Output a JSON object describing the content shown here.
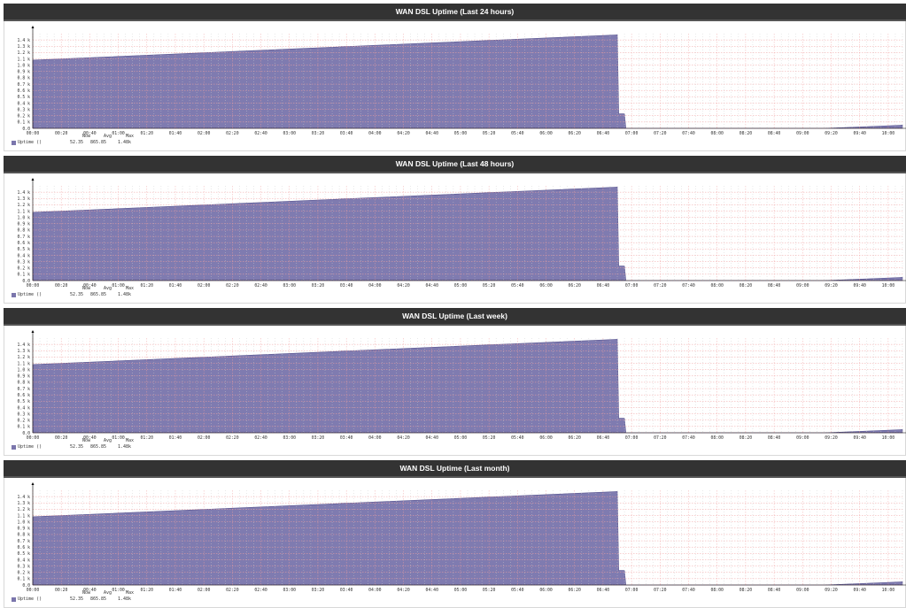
{
  "panels": [
    {
      "title": "WAN DSL Uptime (Last 24 hours)"
    },
    {
      "title": "WAN DSL Uptime (Last 48 hours)"
    },
    {
      "title": "WAN DSL Uptime (Last week)"
    },
    {
      "title": "WAN DSL Uptime (Last month)"
    }
  ],
  "legend": {
    "series_label": "Uptime ()",
    "headers": [
      "Now",
      "Avg",
      "Max"
    ],
    "values": [
      "52.35",
      "865.85",
      "1.48k"
    ],
    "swatch_color": "#7b76ac"
  },
  "colors": {
    "fill": "#7f7bb0",
    "fill_edge": "#5a5690",
    "grid_major": "#f0a0a0",
    "grid_minor": "#cccccc",
    "header_bg": "#333333"
  },
  "chart_data": [
    {
      "type": "area",
      "title": "WAN DSL Uptime (Last 24 hours)",
      "xlabel": "",
      "ylabel": "",
      "ylim": [
        0,
        1.5
      ],
      "y_unit": "k",
      "y_ticks": [
        "0.0",
        "0.1 k",
        "0.2 k",
        "0.3 k",
        "0.4 k",
        "0.5 k",
        "0.6 k",
        "0.7 k",
        "0.8 k",
        "0.9 k",
        "1.0 k",
        "1.1 k",
        "1.2 k",
        "1.3 k",
        "1.4 k"
      ],
      "x_ticks": [
        "00:00",
        "00:20",
        "00:40",
        "01:00",
        "01:20",
        "01:40",
        "02:00",
        "02:20",
        "02:40",
        "03:00",
        "03:20",
        "03:40",
        "04:00",
        "04:20",
        "04:40",
        "05:00",
        "05:20",
        "05:40",
        "06:00",
        "06:20",
        "06:40",
        "07:00",
        "07:20",
        "07:40",
        "08:00",
        "08:20",
        "08:40",
        "09:00",
        "09:20",
        "09:40",
        "10:00"
      ],
      "grid": true,
      "series": [
        {
          "name": "Uptime ()",
          "x": [
            "00:00",
            "06:50",
            "06:51",
            "06:55",
            "06:56",
            "09:15",
            "10:10"
          ],
          "values": [
            1.08,
            1.48,
            0.23,
            0.23,
            0.0,
            0.0,
            0.05
          ]
        }
      ],
      "legend_stats": {
        "now": 52.35,
        "avg": 865.85,
        "max": "1.48k"
      }
    },
    {
      "type": "area",
      "title": "WAN DSL Uptime (Last 48 hours)",
      "ylim": [
        0,
        1.5
      ],
      "y_ticks": [
        "0.0",
        "0.1 k",
        "0.2 k",
        "0.3 k",
        "0.4 k",
        "0.5 k",
        "0.6 k",
        "0.7 k",
        "0.8 k",
        "0.9 k",
        "1.0 k",
        "1.1 k",
        "1.2 k",
        "1.3 k",
        "1.4 k"
      ],
      "x_ticks": [
        "00:00",
        "00:20",
        "00:40",
        "01:00",
        "01:20",
        "01:40",
        "02:00",
        "02:20",
        "02:40",
        "03:00",
        "03:20",
        "03:40",
        "04:00",
        "04:20",
        "04:40",
        "05:00",
        "05:20",
        "05:40",
        "06:00",
        "06:20",
        "06:40",
        "07:00",
        "07:20",
        "07:40",
        "08:00",
        "08:20",
        "08:40",
        "09:00",
        "09:20",
        "09:40",
        "10:00"
      ],
      "grid": true,
      "series": [
        {
          "name": "Uptime ()",
          "x": [
            "00:00",
            "06:50",
            "06:51",
            "06:55",
            "06:56",
            "09:15",
            "10:10"
          ],
          "values": [
            1.08,
            1.48,
            0.23,
            0.23,
            0.0,
            0.0,
            0.05
          ]
        }
      ],
      "legend_stats": {
        "now": 52.35,
        "avg": 865.85,
        "max": "1.48k"
      }
    },
    {
      "type": "area",
      "title": "WAN DSL Uptime (Last week)",
      "ylim": [
        0,
        1.5
      ],
      "y_ticks": [
        "0.0",
        "0.1 k",
        "0.2 k",
        "0.3 k",
        "0.4 k",
        "0.5 k",
        "0.6 k",
        "0.7 k",
        "0.8 k",
        "0.9 k",
        "1.0 k",
        "1.1 k",
        "1.2 k",
        "1.3 k",
        "1.4 k"
      ],
      "x_ticks": [
        "00:00",
        "00:20",
        "00:40",
        "01:00",
        "01:20",
        "01:40",
        "02:00",
        "02:20",
        "02:40",
        "03:00",
        "03:20",
        "03:40",
        "04:00",
        "04:20",
        "04:40",
        "05:00",
        "05:20",
        "05:40",
        "06:00",
        "06:20",
        "06:40",
        "07:00",
        "07:20",
        "07:40",
        "08:00",
        "08:20",
        "08:40",
        "09:00",
        "09:20",
        "09:40",
        "10:00"
      ],
      "grid": true,
      "series": [
        {
          "name": "Uptime ()",
          "x": [
            "00:00",
            "06:50",
            "06:51",
            "06:55",
            "06:56",
            "09:15",
            "10:10"
          ],
          "values": [
            1.08,
            1.48,
            0.23,
            0.23,
            0.0,
            0.0,
            0.05
          ]
        }
      ],
      "legend_stats": {
        "now": 52.35,
        "avg": 865.85,
        "max": "1.48k"
      }
    },
    {
      "type": "area",
      "title": "WAN DSL Uptime (Last month)",
      "ylim": [
        0,
        1.5
      ],
      "y_ticks": [
        "0.0",
        "0.1 k",
        "0.2 k",
        "0.3 k",
        "0.4 k",
        "0.5 k",
        "0.6 k",
        "0.7 k",
        "0.8 k",
        "0.9 k",
        "1.0 k",
        "1.1 k",
        "1.2 k",
        "1.3 k",
        "1.4 k"
      ],
      "x_ticks": [
        "00:00",
        "00:20",
        "00:40",
        "01:00",
        "01:20",
        "01:40",
        "02:00",
        "02:20",
        "02:40",
        "03:00",
        "03:20",
        "03:40",
        "04:00",
        "04:20",
        "04:40",
        "05:00",
        "05:20",
        "05:40",
        "06:00",
        "06:20",
        "06:40",
        "07:00",
        "07:20",
        "07:40",
        "08:00",
        "08:20",
        "08:40",
        "09:00",
        "09:20",
        "09:40",
        "10:00"
      ],
      "grid": true,
      "series": [
        {
          "name": "Uptime ()",
          "x": [
            "00:00",
            "06:50",
            "06:51",
            "06:55",
            "06:56",
            "09:15",
            "10:10"
          ],
          "values": [
            1.08,
            1.48,
            0.23,
            0.23,
            0.0,
            0.0,
            0.05
          ]
        }
      ],
      "legend_stats": {
        "now": 52.35,
        "avg": 865.85,
        "max": "1.48k"
      }
    }
  ]
}
